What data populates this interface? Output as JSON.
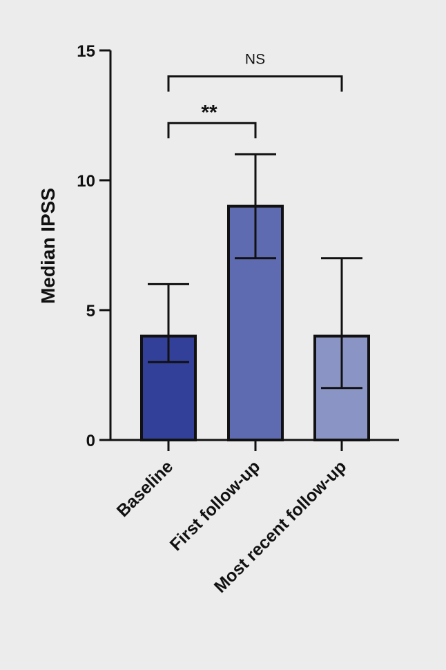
{
  "chart_data": {
    "type": "bar",
    "ylabel": "Median IPSS",
    "xlabel": "",
    "ylim": [
      0,
      15
    ],
    "yticks": [
      0,
      5,
      10,
      15
    ],
    "grid": false,
    "categories": [
      "Baseline",
      "First follow-up",
      "Most recent follow-up"
    ],
    "values": [
      4,
      9,
      4
    ],
    "error_low": [
      3,
      7,
      2
    ],
    "error_high": [
      6,
      11,
      7
    ],
    "bar_colors": [
      "#33409a",
      "#5f6bb0",
      "#8b95c5"
    ],
    "annotations": [
      {
        "from": 0,
        "to": 1,
        "label": "**",
        "y": 12.2
      },
      {
        "from": 0,
        "to": 2,
        "label": "NS",
        "y": 14.0
      }
    ]
  }
}
